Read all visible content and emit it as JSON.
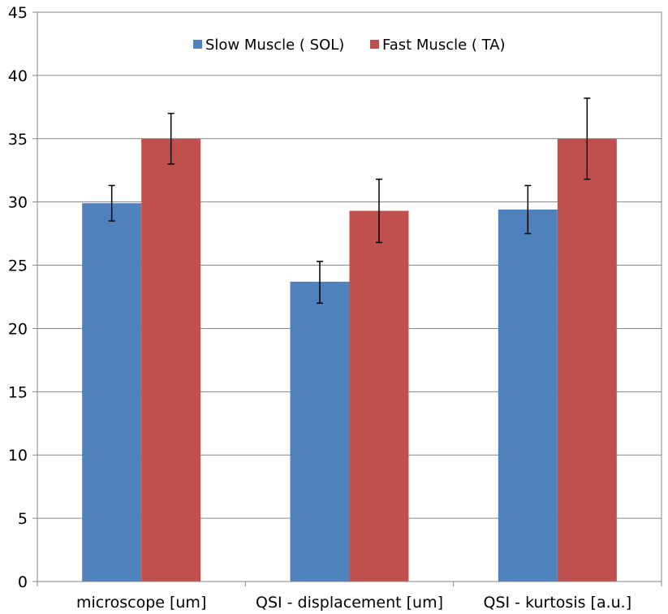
{
  "chart_data": {
    "type": "bar",
    "title": "",
    "xlabel": "",
    "ylabel": "",
    "ylim": [
      0,
      45
    ],
    "yticks": [
      0,
      5,
      10,
      15,
      20,
      25,
      30,
      35,
      40,
      45
    ],
    "grid": true,
    "legend_position": "top-center",
    "categories": [
      "microscope [um]",
      "QSI - displacement [um]",
      "QSI - kurtosis [a.u.]"
    ],
    "series": [
      {
        "name": "Slow Muscle ( SOL)",
        "color": "#4F81BD",
        "values": [
          29.9,
          23.7,
          29.4
        ],
        "error_low": [
          28.5,
          22.0,
          27.5
        ],
        "error_high": [
          31.3,
          25.3,
          31.3
        ]
      },
      {
        "name": "Fast Muscle ( TA)",
        "color": "#C0504D",
        "values": [
          35.0,
          29.3,
          35.0
        ],
        "error_low": [
          33.0,
          26.8,
          31.8
        ],
        "error_high": [
          37.0,
          31.8,
          38.2
        ]
      }
    ]
  }
}
